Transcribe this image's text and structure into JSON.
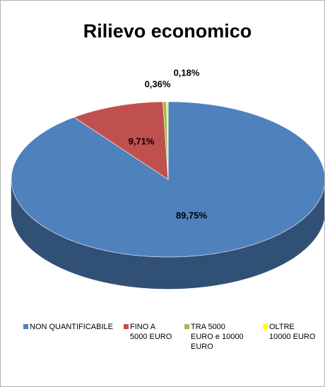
{
  "chart_data": {
    "type": "pie3d",
    "title": "Rilievo economico",
    "categories": [
      "NON QUANTIFICABILE",
      "FINO A 5000 EURO",
      "TRA 5000 EURO e 10000 EURO",
      "OLTRE 10000 EURO"
    ],
    "values": [
      89.75,
      9.71,
      0.36,
      0.18
    ],
    "value_labels": [
      "89,75%",
      "9,71%",
      "0,36%",
      "0,18%"
    ],
    "colors": [
      "#4f81bd",
      "#c0504d",
      "#9bbb59",
      "#ffff00"
    ],
    "legend": "bottom"
  }
}
